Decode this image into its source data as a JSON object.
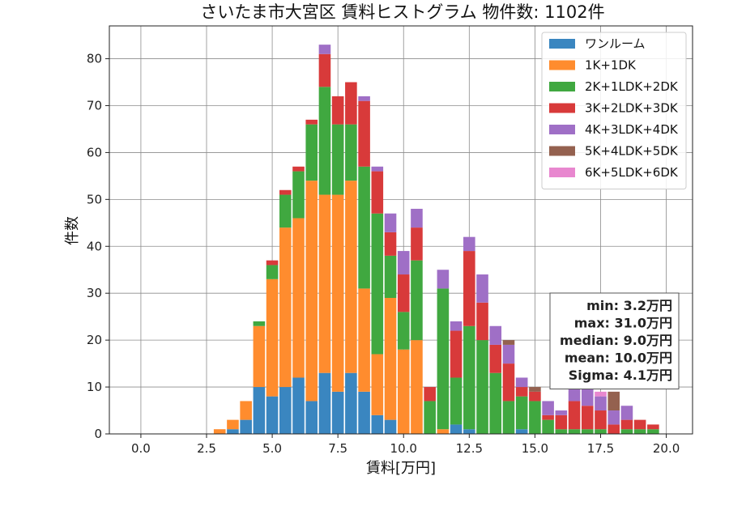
{
  "chart_data": {
    "type": "bar",
    "stacked": true,
    "title": "さいたま市大宮区 賃料ヒストグラム  物件数: 1102件",
    "xlabel": "賃料[万円]",
    "ylabel": "件数",
    "xlim": [
      -1.2,
      21.0
    ],
    "ylim": [
      0,
      87
    ],
    "xticks": [
      0.0,
      2.5,
      5.0,
      7.5,
      10.0,
      12.5,
      15.0,
      17.5,
      20.0
    ],
    "yticks": [
      0,
      10,
      20,
      30,
      40,
      50,
      60,
      70,
      80
    ],
    "bin_width": 0.5,
    "grid": true,
    "legend_position": "top-right",
    "x": [
      3.0,
      3.5,
      4.0,
      4.5,
      5.0,
      5.5,
      6.0,
      6.5,
      7.0,
      7.5,
      8.0,
      8.5,
      9.0,
      9.5,
      10.0,
      10.5,
      11.0,
      11.5,
      12.0,
      12.5,
      13.0,
      13.5,
      14.0,
      14.5,
      15.0,
      15.5,
      16.0,
      16.5,
      17.0,
      17.5,
      18.0,
      18.5,
      19.0,
      19.5
    ],
    "series": [
      {
        "name": "ワンルーム",
        "color": "#3a86c0",
        "values": [
          0,
          1,
          3,
          10,
          8,
          10,
          12,
          7,
          13,
          9,
          13,
          9,
          4,
          3,
          0,
          0,
          0,
          0,
          2,
          1,
          0,
          0,
          0,
          1,
          0,
          0,
          0,
          0,
          0,
          0,
          0,
          0,
          0,
          0
        ]
      },
      {
        "name": "1K+1DK",
        "color": "#ff8c2e",
        "values": [
          1,
          2,
          4,
          13,
          25,
          34,
          34,
          47,
          38,
          42,
          41,
          22,
          13,
          26,
          18,
          20,
          0,
          1,
          0,
          0,
          0,
          0,
          0,
          0,
          0,
          0,
          0,
          0,
          0,
          0,
          0,
          0,
          0,
          0
        ]
      },
      {
        "name": "2K+1LDK+2DK",
        "color": "#40a840",
        "values": [
          0,
          0,
          0,
          1,
          3,
          7,
          10,
          12,
          23,
          15,
          12,
          26,
          30,
          9,
          8,
          17,
          7,
          30,
          10,
          22,
          20,
          13,
          7,
          7,
          7,
          3,
          1,
          1,
          1,
          1,
          0,
          1,
          1,
          1
        ]
      },
      {
        "name": "3K+2LDK+3DK",
        "color": "#d83a3a",
        "values": [
          0,
          0,
          0,
          0,
          1,
          1,
          1,
          1,
          7,
          6,
          9,
          14,
          9,
          5,
          8,
          7,
          3,
          0,
          10,
          16,
          8,
          6,
          8,
          2,
          2,
          1,
          3,
          6,
          5,
          4,
          2,
          2,
          2,
          1
        ]
      },
      {
        "name": "4K+3LDK+4DK",
        "color": "#9f6fc6",
        "values": [
          0,
          0,
          0,
          0,
          0,
          0,
          0,
          0,
          2,
          0,
          0,
          1,
          1,
          4,
          5,
          4,
          0,
          4,
          2,
          3,
          6,
          4,
          4,
          2,
          0,
          3,
          1,
          4,
          7,
          3,
          3,
          3,
          0,
          0
        ]
      },
      {
        "name": "5K+4LDK+5DK",
        "color": "#94614f",
        "values": [
          0,
          0,
          0,
          0,
          0,
          0,
          0,
          0,
          0,
          0,
          0,
          0,
          0,
          0,
          0,
          0,
          0,
          0,
          0,
          0,
          0,
          0,
          1,
          0,
          1,
          0,
          0,
          0,
          0,
          0,
          4,
          0,
          0,
          0
        ]
      },
      {
        "name": "6K+5LDK+6DK",
        "color": "#e887cf",
        "values": [
          0,
          0,
          0,
          0,
          0,
          0,
          0,
          0,
          0,
          0,
          0,
          0,
          0,
          0,
          0,
          0,
          0,
          0,
          0,
          0,
          0,
          0,
          0,
          0,
          0,
          0,
          0,
          0,
          0,
          1,
          0,
          0,
          0,
          0
        ]
      }
    ],
    "stats_box": [
      "min: 3.2万円",
      "max: 31.0万円",
      "median: 9.0万円",
      "mean: 10.0万円",
      "Sigma: 4.1万円"
    ]
  }
}
